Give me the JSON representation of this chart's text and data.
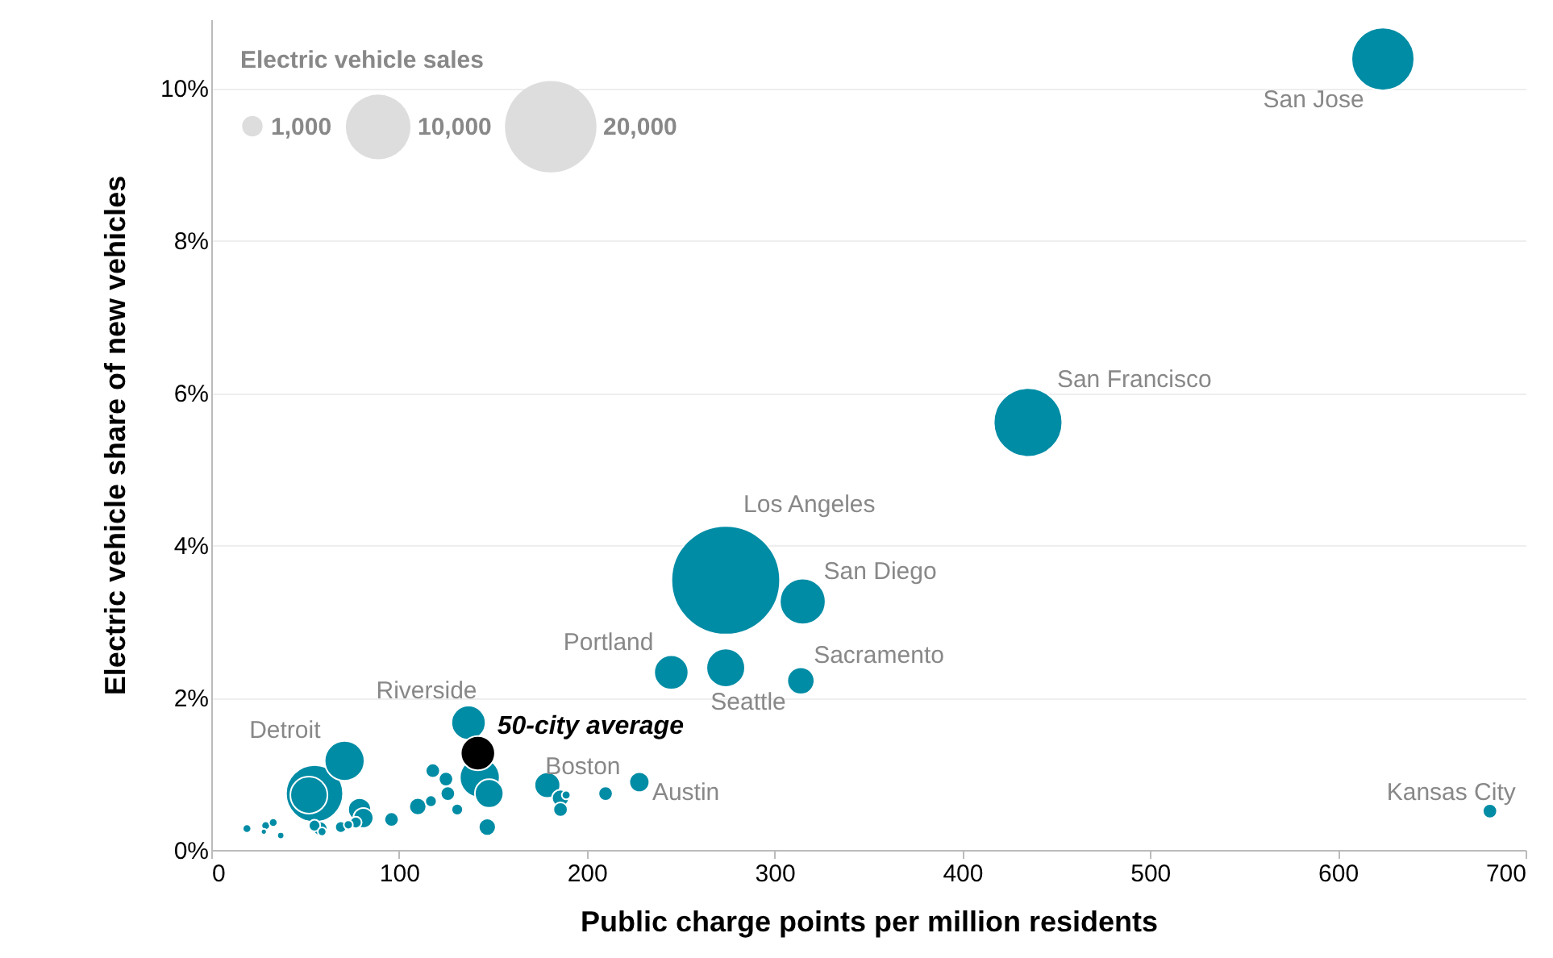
{
  "chart_data": {
    "type": "bubble",
    "xlabel": "Public charge points per million residents",
    "ylabel": "Electric vehicle share of new vehicles",
    "legend_title": "Electric vehicle sales",
    "size_legend": [
      {
        "value": 1000,
        "label": "1,000"
      },
      {
        "value": 10000,
        "label": "10,000"
      },
      {
        "value": 20000,
        "label": "20,000"
      }
    ],
    "grid": "y",
    "xlim": [
      0,
      700
    ],
    "xticks": [
      0,
      100,
      200,
      300,
      400,
      500,
      600,
      700
    ],
    "ylim": [
      0,
      10.9
    ],
    "yticks": [
      {
        "value": 0,
        "label": "0%"
      },
      {
        "value": 2,
        "label": "2%"
      },
      {
        "value": 4,
        "label": "4%"
      },
      {
        "value": 6,
        "label": "6%"
      },
      {
        "value": 8,
        "label": "8%"
      },
      {
        "value": 10,
        "label": "10%"
      }
    ],
    "series": [
      {
        "color": "#008ca5",
        "x": [
          624,
          435,
          274,
          315,
          245,
          274,
          314,
          137,
          179,
          228,
          681,
          71,
          55,
          52,
          79,
          81,
          58,
          69,
          73,
          96,
          110,
          117,
          118,
          125,
          126,
          131,
          143,
          148,
          147,
          186,
          186,
          189,
          210,
          19,
          29,
          33,
          28,
          37,
          55,
          59,
          77
        ],
        "values": [
          10.38,
          5.61,
          3.54,
          3.26,
          2.33,
          2.39,
          2.22,
          1.67,
          0.85,
          0.89,
          0.51,
          1.17,
          0.74,
          0.72,
          0.53,
          0.42,
          0.28,
          0.3,
          0.33,
          0.4,
          0.57,
          0.64,
          1.04,
          0.93,
          0.74,
          0.53,
          0.95,
          0.74,
          0.3,
          0.68,
          0.53,
          0.72,
          0.74,
          0.28,
          0.32,
          0.36,
          0.24,
          0.19,
          0.32,
          0.24,
          0.36
        ],
        "sizes": [
          9450,
          11250,
          28200,
          5000,
          2800,
          3560,
          1760,
          2800,
          1580,
          960,
          490,
          3800,
          7800,
          3300,
          1250,
          960,
          490,
          310,
          200,
          490,
          700,
          320,
          490,
          490,
          490,
          320,
          3800,
          1950,
          700,
          700,
          490,
          180,
          490,
          176,
          176,
          176,
          80,
          120,
          320,
          180,
          320
        ]
      },
      {
        "color": "#000000",
        "x": [
          142
        ],
        "values": [
          1.27
        ],
        "sizes": [
          2800
        ]
      }
    ],
    "annotations": [
      {
        "text": "San Jose",
        "x": 624,
        "y": 10.38
      },
      {
        "text": "San Francisco",
        "x": 435,
        "y": 5.61
      },
      {
        "text": "Los Angeles",
        "x": 274,
        "y": 3.54
      },
      {
        "text": "San Diego",
        "x": 315,
        "y": 3.26
      },
      {
        "text": "Portland",
        "x": 245,
        "y": 2.33
      },
      {
        "text": "Seattle",
        "x": 274,
        "y": 2.39
      },
      {
        "text": "Sacramento",
        "x": 314,
        "y": 2.22
      },
      {
        "text": "Riverside",
        "x": 137,
        "y": 1.67
      },
      {
        "text": "Boston",
        "x": 179,
        "y": 0.85
      },
      {
        "text": "Austin",
        "x": 228,
        "y": 0.89
      },
      {
        "text": "Kansas City",
        "x": 681,
        "y": 0.51
      },
      {
        "text": "Detroit",
        "x": 71,
        "y": 1.17
      },
      {
        "text": "50-city average",
        "x": 142,
        "y": 1.27
      }
    ]
  }
}
